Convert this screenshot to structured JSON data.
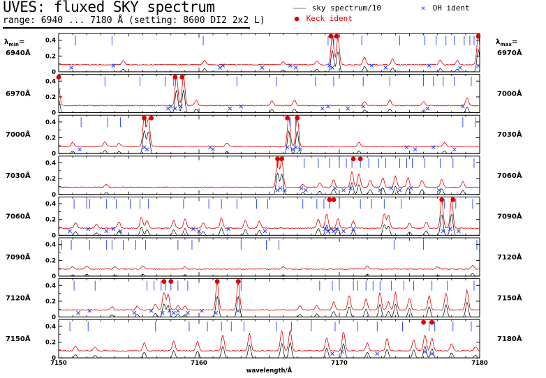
{
  "header": {
    "title": "UVES: fluxed SKY spectrum",
    "subtitle": "range: 6940 ... 7180 Å (setting: 8600 DI2 2x2 L)"
  },
  "legend": {
    "sky": "sky spectrum/10",
    "oh": "OH ident",
    "keck": "Keck ident",
    "oh_symbol": "×",
    "keck_symbol": "●"
  },
  "side_labels": {
    "lmin_prefix": "λ",
    "lmin_sub": "min",
    "lmax_prefix": "λ",
    "lmax_sub": "max",
    "suffix": "="
  },
  "colors": {
    "spectrum": "#e00000",
    "sky_scaled": "#000000",
    "oh": "#1f3dff",
    "keck": "#e00000"
  },
  "chart_data": {
    "type": "line",
    "xlabel": "wavelength/Å",
    "x_tick_labels": [
      "7150",
      "7160",
      "7170",
      "7180"
    ],
    "x_ticks": [
      7150,
      7160,
      7170,
      7180
    ],
    "ylim": [
      0,
      0.45
    ],
    "y_ticks": [
      0,
      0.2,
      0.4
    ],
    "y_tick_labels": [
      "0",
      "0.2",
      "0.4"
    ],
    "panels": [
      {
        "lmin": "6940Å",
        "lmax": "6970Å",
        "start": 6940,
        "peaks": [
          [
            6959.5,
            0.36
          ],
          [
            6959.9,
            0.34
          ],
          [
            6969.9,
            0.38
          ],
          [
            6944.6,
            0.05
          ],
          [
            6950.4,
            0.06
          ],
          [
            6956.0,
            0.04
          ],
          [
            6958.4,
            0.05
          ],
          [
            6961.8,
            0.1
          ],
          [
            6963.8,
            0.07
          ],
          [
            6967.2,
            0.06
          ],
          [
            6968.4,
            0.05
          ]
        ],
        "oh": [
          6940.9,
          6943.9,
          6951.5,
          6951.7,
          6954.5,
          6956.5,
          6956.9,
          6959.3,
          6959.5,
          6962.3,
          6963.3,
          6966.4,
          6968.6,
          6969.9
        ],
        "keck": [
          6959.4,
          6959.8,
          6969.9
        ],
        "blue_ticks": [
          6941.2,
          6943.8,
          6950.3,
          6959.2,
          6959.6,
          6961.6,
          6964.3,
          6966.1,
          6966.9,
          6967.6,
          6968.2,
          6968.9,
          6969.3,
          6969.6
        ]
      },
      {
        "lmin": "6970Å",
        "lmax": "7000Å",
        "start": 6970,
        "peaks": [
          [
            6978.4,
            0.38
          ],
          [
            6978.9,
            0.38
          ],
          [
            6970.0,
            0.22
          ],
          [
            6979.8,
            0.07
          ],
          [
            6985.2,
            0.06
          ],
          [
            6986.8,
            0.07
          ],
          [
            6991.8,
            0.05
          ],
          [
            6993.6,
            0.07
          ],
          [
            6996.0,
            0.05
          ],
          [
            6999.1,
            0.1
          ]
        ],
        "oh": [
          6977.8,
          6978.0,
          6978.3,
          6978.7,
          6982.2,
          6983.0,
          6988.8,
          6989.2,
          6990.6,
          6991.7,
          6996.3,
          6998.8
        ],
        "keck": [
          6970.0,
          6978.3,
          6978.8
        ],
        "blue_ticks": [
          6973.3,
          6975.8,
          6977.6,
          6978.2,
          6982.7,
          6985.5,
          6988.3,
          6989.6,
          6991.7,
          6993.6,
          6996.0,
          6996.7,
          6997.4,
          6998.2,
          6999.4
        ]
      },
      {
        "lmin": "7000Å",
        "lmax": "7030Å",
        "start": 7000,
        "peaks": [
          [
            7006.1,
            0.38
          ],
          [
            7006.4,
            0.37
          ],
          [
            7016.4,
            0.38
          ],
          [
            7017.0,
            0.38
          ],
          [
            7001.0,
            0.05
          ],
          [
            7003.3,
            0.06
          ],
          [
            7004.3,
            0.04
          ],
          [
            7012.0,
            0.04
          ],
          [
            7021.4,
            0.05
          ],
          [
            7027.5,
            0.05
          ]
        ],
        "oh": [
          7001.5,
          7006.1,
          7006.3,
          7010.8,
          7011.0,
          7016.3,
          7016.7,
          7016.9,
          7017.2,
          7024.8,
          7025.4,
          7026.7,
          7028.2
        ],
        "keck": [
          7006.1,
          7006.6,
          7016.3,
          7017.0
        ],
        "blue_ticks": [
          7001.6,
          7003.5,
          7004.4,
          7006.2,
          7016.5,
          7016.9,
          7028.8,
          7029.7
        ]
      },
      {
        "lmin": "7030Å",
        "lmax": "7060Å",
        "start": 7030,
        "peaks": [
          [
            7045.6,
            0.36
          ],
          [
            7045.9,
            0.34
          ],
          [
            7050.9,
            0.2
          ],
          [
            7051.4,
            0.17
          ],
          [
            7049.6,
            0.1
          ],
          [
            7053.1,
            0.12
          ],
          [
            7054.0,
            0.14
          ],
          [
            7054.9,
            0.12
          ],
          [
            7057.3,
            0.1
          ],
          [
            7055.9,
            0.09
          ],
          [
            7058.8,
            0.07
          ],
          [
            7052.2,
            0.09
          ],
          [
            7047.4,
            0.04
          ],
          [
            7048.6,
            0.06
          ],
          [
            7033.4,
            0.04
          ]
        ],
        "oh": [
          7045.6,
          7045.8,
          7046.1,
          7047.3,
          7047.6,
          7049.7,
          7050.3,
          7050.8,
          7052.9,
          7053.7,
          7054.3,
          7055.1,
          7057.1
        ],
        "keck": [
          7045.6,
          7045.9,
          7051.0,
          7051.5
        ],
        "blue_ticks": [
          7045.6,
          7047.5,
          7048.5,
          7049.3,
          7050.0,
          7050.5,
          7050.9,
          7051.5,
          7052.1,
          7052.8,
          7053.3,
          7054.3,
          7054.8,
          7055.2,
          7056.1,
          7057.2,
          7058.1,
          7059.6
        ]
      },
      {
        "lmin": "7060Å",
        "lmax": "7090Å",
        "start": 7060,
        "peaks": [
          [
            7065.9,
            0.14
          ],
          [
            7066.3,
            0.1
          ],
          [
            7068.2,
            0.1
          ],
          [
            7069.0,
            0.12
          ],
          [
            7071.6,
            0.13
          ],
          [
            7073.3,
            0.1
          ],
          [
            7074.3,
            0.09
          ],
          [
            7078.5,
            0.12
          ],
          [
            7079.1,
            0.18
          ],
          [
            7079.9,
            0.12
          ],
          [
            7083.2,
            0.18
          ],
          [
            7083.5,
            0.16
          ],
          [
            7087.3,
            0.35
          ],
          [
            7088.0,
            0.36
          ],
          [
            7061.2,
            0.07
          ],
          [
            7062.7,
            0.05
          ],
          [
            7064.3,
            0.08
          ],
          [
            7070.3,
            0.07
          ],
          [
            7081.0,
            0.09
          ],
          [
            7085.0,
            0.06
          ],
          [
            7086.2,
            0.08
          ]
        ],
        "oh": [
          7060.8,
          7062.1,
          7063.4,
          7063.9,
          7064.4,
          7069.6,
          7070.0,
          7072.1,
          7074.7,
          7079.0,
          7079.2,
          7079.4,
          7079.6,
          7079.8,
          7080.3,
          7081.0,
          7087.4,
          7087.9,
          7088.5
        ],
        "keck": [
          7079.3,
          7079.6,
          7087.3,
          7088.1
        ],
        "blue_ticks": [
          7061.1,
          7062.0,
          7062.2,
          7063.4,
          7064.1,
          7065.1,
          7065.8,
          7066.4,
          7068.9,
          7070.7,
          7071.6,
          7072.7,
          7074.1,
          7074.9,
          7077.4,
          7078.4,
          7078.9,
          7079.3,
          7080.0,
          7081.5,
          7082.3,
          7083.2,
          7084.4,
          7087.5,
          7088.3,
          7089.5
        ]
      },
      {
        "lmin": "7090Å",
        "lmax": "7120Å",
        "start": 7090,
        "peaks": [
          [
            7091.0,
            0.03
          ],
          [
            7092.0,
            0.04
          ],
          [
            7094.0,
            0.03
          ],
          [
            7096.0,
            0.04
          ],
          [
            7099.0,
            0.03
          ],
          [
            7106.0,
            0.03
          ],
          [
            7112.0,
            0.04
          ],
          [
            7117.0,
            0.03
          ],
          [
            7119.5,
            0.05
          ]
        ],
        "oh": [],
        "keck": [],
        "blue_ticks": [
          7090.2,
          7090.9,
          7092.2,
          7093.4,
          7093.8,
          7094.6,
          7095.5,
          7096.2,
          7098.5,
          7099.5,
          7103.0,
          7104.8,
          7105.7,
          7113.9,
          7116.0,
          7119.8
        ]
      },
      {
        "lmin": "7120Å",
        "lmax": "7150Å",
        "start": 7120,
        "peaks": [
          [
            7127.5,
            0.22
          ],
          [
            7127.8,
            0.2
          ],
          [
            7131.3,
            0.35
          ],
          [
            7132.8,
            0.34
          ],
          [
            7126.9,
            0.07
          ],
          [
            7128.5,
            0.06
          ],
          [
            7129.0,
            0.05
          ],
          [
            7140.7,
            0.18
          ],
          [
            7141.9,
            0.14
          ],
          [
            7142.9,
            0.22
          ],
          [
            7144.0,
            0.22
          ],
          [
            7145.0,
            0.15
          ],
          [
            7146.4,
            0.18
          ],
          [
            7147.6,
            0.21
          ],
          [
            7149.1,
            0.25
          ],
          [
            7143.5,
            0.1
          ],
          [
            7139.6,
            0.1
          ],
          [
            7138.4,
            0.06
          ],
          [
            7137.2,
            0.05
          ],
          [
            7125.6,
            0.05
          ],
          [
            7123.8,
            0.04
          ]
        ],
        "oh": [
          7121.4,
          7122.2,
          7125.4,
          7126.6,
          7127.4,
          7127.9,
          7128.2,
          7128.5,
          7129.2,
          7130.2,
          7131.2,
          7132.8
        ],
        "keck": [
          7127.5,
          7128.0,
          7131.3,
          7132.8
        ],
        "blue_ticks": [
          7121.1,
          7122.6,
          7126.3,
          7126.8,
          7127.3,
          7127.6,
          7128.0,
          7128.5,
          7129.2,
          7133.0,
          7138.6,
          7139.5,
          7140.0,
          7141.0,
          7141.3,
          7141.9,
          7142.4,
          7142.9,
          7143.7,
          7144.6,
          7145.3,
          7146.6,
          7147.7,
          7149.6
        ]
      },
      {
        "lmin": "7150Å",
        "lmax": "7180Å",
        "start": 7150,
        "peaks": [
          [
            7151.2,
            0.06
          ],
          [
            7152.6,
            0.05
          ],
          [
            7156.1,
            0.1
          ],
          [
            7158.2,
            0.13
          ],
          [
            7159.9,
            0.12
          ],
          [
            7161.7,
            0.2
          ],
          [
            7163.6,
            0.22
          ],
          [
            7165.9,
            0.25
          ],
          [
            7166.5,
            0.26
          ],
          [
            7169.1,
            0.17
          ],
          [
            7170.3,
            0.24
          ],
          [
            7172.0,
            0.1
          ],
          [
            7173.4,
            0.15
          ],
          [
            7175.3,
            0.14
          ],
          [
            7176.1,
            0.2
          ],
          [
            7176.6,
            0.16
          ],
          [
            7178.0,
            0.09
          ],
          [
            7179.7,
            0.05
          ]
        ],
        "oh": [
          7169.5,
          7170.2,
          7172.7,
          7176.1,
          7176.6
        ],
        "keck": [
          7176.0,
          7176.6
        ],
        "blue_ticks": [
          7150.8,
          7152.1,
          7156.9,
          7159.3,
          7160.6,
          7161.6,
          7162.3,
          7163.2,
          7165.5,
          7166.6,
          7168.0,
          7169.7,
          7171.3,
          7172.7,
          7174.5,
          7176.4,
          7176.8,
          7178.1,
          7179.4
        ]
      }
    ]
  }
}
